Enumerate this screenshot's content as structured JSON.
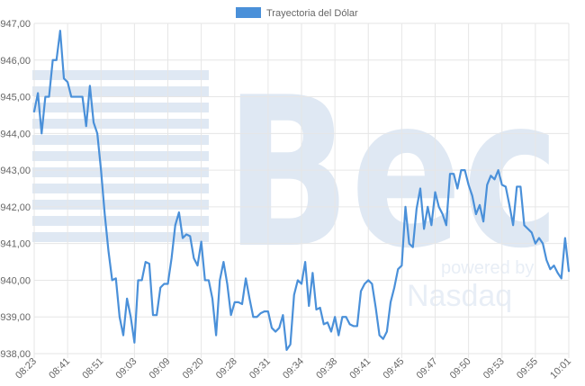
{
  "chart_data": {
    "type": "line",
    "legend": {
      "label": "Trayectoria del Dólar",
      "position": "top-center"
    },
    "series": [
      {
        "name": "Trayectoria del Dólar",
        "color": "#4a90d9",
        "values": [
          944.6,
          945.1,
          944.0,
          945.0,
          945.0,
          946.0,
          946.0,
          946.8,
          945.5,
          945.4,
          945.0,
          945.0,
          945.0,
          945.0,
          944.2,
          945.3,
          944.3,
          944.0,
          943.0,
          941.8,
          940.8,
          940.0,
          940.05,
          939.0,
          938.5,
          939.5,
          939.0,
          938.3,
          940.0,
          940.0,
          940.5,
          940.45,
          939.05,
          939.05,
          939.8,
          939.9,
          939.9,
          940.6,
          941.5,
          941.85,
          941.15,
          941.25,
          941.2,
          940.6,
          940.4,
          941.05,
          940.0,
          940.0,
          939.5,
          938.5,
          940.0,
          940.5,
          939.9,
          939.05,
          939.4,
          939.4,
          939.35,
          940.05,
          939.5,
          939.0,
          939.0,
          939.1,
          939.15,
          939.15,
          938.7,
          938.6,
          938.7,
          939.05,
          938.1,
          938.25,
          939.6,
          940.0,
          939.9,
          940.5,
          939.3,
          940.2,
          939.2,
          939.25,
          938.8,
          938.85,
          938.6,
          939.0,
          938.5,
          939.0,
          939.0,
          938.8,
          938.75,
          938.75,
          939.7,
          939.9,
          940.0,
          939.9,
          939.25,
          938.5,
          938.4,
          938.6,
          939.4,
          939.8,
          940.3,
          940.4,
          942.0,
          941.0,
          940.9,
          941.95,
          942.5,
          941.4,
          942.0,
          941.5,
          942.4,
          942.0,
          941.8,
          941.5,
          942.9,
          942.9,
          942.5,
          943.0,
          943.0,
          942.6,
          942.3,
          941.8,
          942.05,
          941.6,
          942.6,
          942.85,
          942.75,
          943.0,
          942.6,
          942.55,
          942.05,
          941.5,
          942.55,
          942.55,
          941.5,
          941.4,
          941.3,
          941.0,
          941.15,
          941.0,
          940.55,
          940.3,
          940.4,
          940.2,
          940.05,
          941.15,
          940.25
        ]
      }
    ],
    "x_ticks": [
      "08:23",
      "08:41",
      "08:51",
      "09:03",
      "09:09",
      "09:20",
      "09:28",
      "09:31",
      "09:34",
      "09:38",
      "09:41",
      "09:45",
      "09:47",
      "09:50",
      "09:53",
      "09:55",
      "10:01"
    ],
    "y_ticks": [
      "$938,00",
      "$939,00",
      "$940,00",
      "$941,00",
      "$942,00",
      "$943,00",
      "$944,00",
      "$945,00",
      "$946,00",
      "$947,00"
    ],
    "ylim": [
      938,
      947
    ],
    "grid": true
  },
  "watermark": {
    "logo_text": "Bec",
    "powered_by": "powered by",
    "partner": "Nasdaq"
  }
}
